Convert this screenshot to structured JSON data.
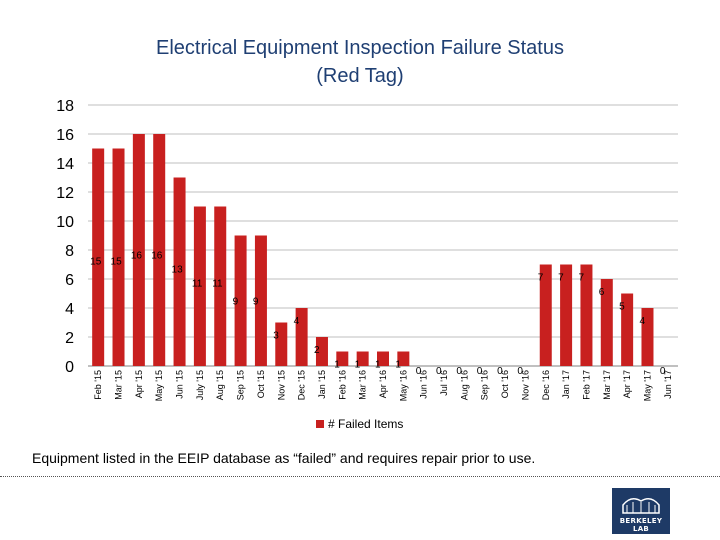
{
  "title_line1": "Electrical Equipment Inspection Failure Status",
  "title_line2": "(Red Tag)",
  "footnote": "Equipment listed in the EEIP database as “failed” and requires repair prior to use.",
  "logo_text": "BERKELEY LAB",
  "colors": {
    "bar": "#c8201f",
    "title": "#1f3f73",
    "grid": "#bfbfbf"
  },
  "chart_data": {
    "type": "bar",
    "title": "Electrical Equipment Inspection Failure Status (Red Tag)",
    "xlabel": "",
    "ylabel": "",
    "ylim": [
      0,
      18
    ],
    "yticks": [
      0,
      2,
      4,
      6,
      8,
      10,
      12,
      14,
      16,
      18
    ],
    "grid": true,
    "legend_position": "bottom",
    "categories": [
      "Feb '15",
      "Mar '15",
      "Apr '15",
      "May '15",
      "Jun '15",
      "July '15",
      "Aug '15",
      "Sep '15",
      "Oct '15",
      "Nov '15",
      "Dec '15",
      "Jan '15",
      "Feb '16",
      "Mar '16",
      "Apr '16",
      "May '16",
      "Jun '16",
      "Jul '16",
      "Aug '16",
      "Sep '16",
      "Oct '16",
      "Nov '16",
      "Dec '16",
      "Jan '17",
      "Feb '17",
      "Mar '17",
      "Apr '17",
      "May '17",
      "Jun '17"
    ],
    "series": [
      {
        "name": "# Failed Items",
        "values": [
          15,
          15,
          16,
          16,
          13,
          11,
          11,
          9,
          9,
          3,
          4,
          2,
          1,
          1,
          1,
          1,
          0,
          0,
          0,
          0,
          0,
          0,
          7,
          7,
          7,
          6,
          5,
          4,
          0
        ]
      }
    ]
  }
}
